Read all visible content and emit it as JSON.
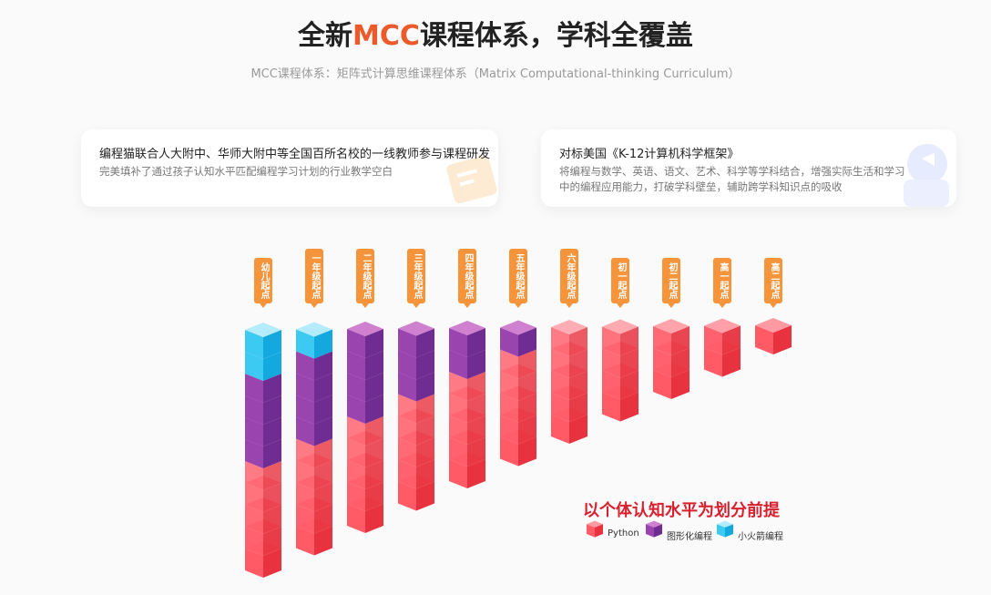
{
  "header": {
    "title_prefix": "全新",
    "title_highlight": "MCC",
    "title_suffix": "课程体系，学科全覆盖",
    "subtitle": "MCC课程体系：矩阵式计算思维课程体系（Matrix Computational-thinking Curriculum）"
  },
  "cards": [
    {
      "title": "编程猫联合人大附中、华师大附中等全国百所名校的一线教师参与课程研发",
      "text": "完美填补了通过孩子认知水平匹配编程学习计划的行业教学空白"
    },
    {
      "title": "对标美国《K-12计算机科学框架》",
      "text": "将编程与数学、英语、语文、艺术、科学等学科结合，增强实际生活和学习中的编程应用能力，打破学科壁垒，辅助跨学科知识点的吸收"
    }
  ],
  "stages": [
    {
      "label": "幼儿起点",
      "python": 5,
      "graphical": 4,
      "rocket": 2
    },
    {
      "label": "一年级起点",
      "python": 5,
      "graphical": 4,
      "rocket": 1
    },
    {
      "label": "二年级起点",
      "python": 5,
      "graphical": 4,
      "rocket": 0
    },
    {
      "label": "三年级起点",
      "python": 5,
      "graphical": 3,
      "rocket": 0
    },
    {
      "label": "四年级起点",
      "python": 5,
      "graphical": 2,
      "rocket": 0
    },
    {
      "label": "五年级起点",
      "python": 5,
      "graphical": 1,
      "rocket": 0
    },
    {
      "label": "六年级起点",
      "python": 5,
      "graphical": 0,
      "rocket": 0
    },
    {
      "label": "初一起点",
      "python": 4,
      "graphical": 0,
      "rocket": 0
    },
    {
      "label": "初二起点",
      "python": 3,
      "graphical": 0,
      "rocket": 0
    },
    {
      "label": "高一起点",
      "python": 2,
      "graphical": 0,
      "rocket": 0
    },
    {
      "label": "高二起点",
      "python": 1,
      "graphical": 0,
      "rocket": 0
    }
  ],
  "legend": {
    "title": "以个体认知水平为划分前提",
    "items": [
      "Python",
      "图形化编程",
      "小火箭编程"
    ]
  }
}
